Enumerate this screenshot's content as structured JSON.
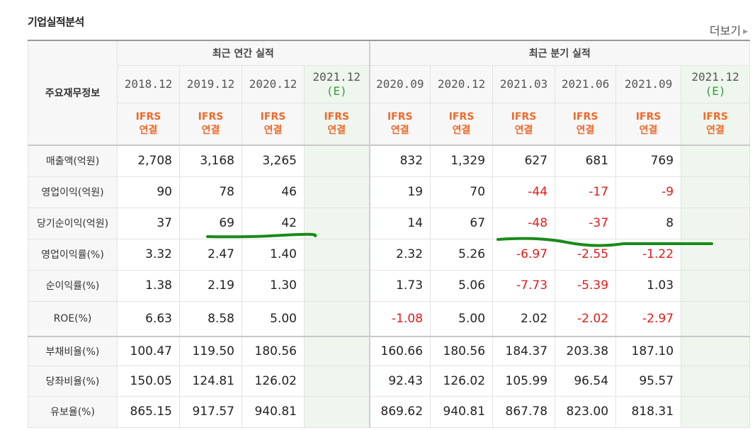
{
  "page": {
    "title": "기업실적분석",
    "more_label": "더보기",
    "more_icon": "triangle-right-icon"
  },
  "table": {
    "row_header": "주요재무정보",
    "group_annual": "최근 연간 실적",
    "group_quarter": "최근 분기 실적",
    "annual_periods": [
      {
        "label": "2018.12",
        "sub": ""
      },
      {
        "label": "2019.12",
        "sub": ""
      },
      {
        "label": "2020.12",
        "sub": ""
      },
      {
        "label": "2021.12",
        "sub": "(E)"
      }
    ],
    "quarter_periods": [
      {
        "label": "2020.09",
        "sub": ""
      },
      {
        "label": "2020.12",
        "sub": ""
      },
      {
        "label": "2021.03",
        "sub": ""
      },
      {
        "label": "2021.06",
        "sub": ""
      },
      {
        "label": "2021.09",
        "sub": ""
      },
      {
        "label": "2021.12",
        "sub": "(E)"
      }
    ],
    "ifrs_line1": "IFRS",
    "ifrs_line2": "연결",
    "rows": [
      {
        "label": "매출액(억원)",
        "annual": [
          "2,708",
          "3,168",
          "3,265",
          ""
        ],
        "quarter": [
          "832",
          "1,329",
          "627",
          "681",
          "769",
          ""
        ]
      },
      {
        "label": "영업이익(억원)",
        "annual": [
          "90",
          "78",
          "46",
          ""
        ],
        "quarter": [
          "19",
          "70",
          "-44",
          "-17",
          "-9",
          ""
        ]
      },
      {
        "label": "당기순이익(억원)",
        "annual": [
          "37",
          "69",
          "42",
          ""
        ],
        "quarter": [
          "14",
          "67",
          "-48",
          "-37",
          "8",
          ""
        ]
      },
      {
        "label": "영업이익률(%)",
        "annual": [
          "3.32",
          "2.47",
          "1.40",
          ""
        ],
        "quarter": [
          "2.32",
          "5.26",
          "-6.97",
          "-2.55",
          "-1.22",
          ""
        ]
      },
      {
        "label": "순이익률(%)",
        "annual": [
          "1.38",
          "2.19",
          "1.30",
          ""
        ],
        "quarter": [
          "1.73",
          "5.06",
          "-7.73",
          "-5.39",
          "1.03",
          ""
        ]
      },
      {
        "label": "ROE(%)",
        "annual": [
          "6.63",
          "8.58",
          "5.00",
          ""
        ],
        "quarter": [
          "-1.08",
          "5.00",
          "2.02",
          "-2.02",
          "-2.97",
          ""
        ]
      },
      {
        "label": "부채비율(%)",
        "annual": [
          "100.47",
          "119.50",
          "180.56",
          ""
        ],
        "quarter": [
          "160.66",
          "180.56",
          "184.37",
          "203.38",
          "187.10",
          ""
        ]
      },
      {
        "label": "당좌비율(%)",
        "annual": [
          "150.05",
          "124.81",
          "126.02",
          ""
        ],
        "quarter": [
          "92.43",
          "126.02",
          "105.99",
          "96.54",
          "95.57",
          ""
        ]
      },
      {
        "label": "유보율(%)",
        "annual": [
          "865.15",
          "917.57",
          "940.81",
          ""
        ],
        "quarter": [
          "869.62",
          "940.81",
          "867.78",
          "823.00",
          "818.31",
          ""
        ]
      }
    ]
  },
  "colors": {
    "negative": "#e01b1b",
    "ifrs": "#ee6a2c",
    "estimate_bg": "#eef6ee",
    "annotation": "#1a8a1a"
  }
}
